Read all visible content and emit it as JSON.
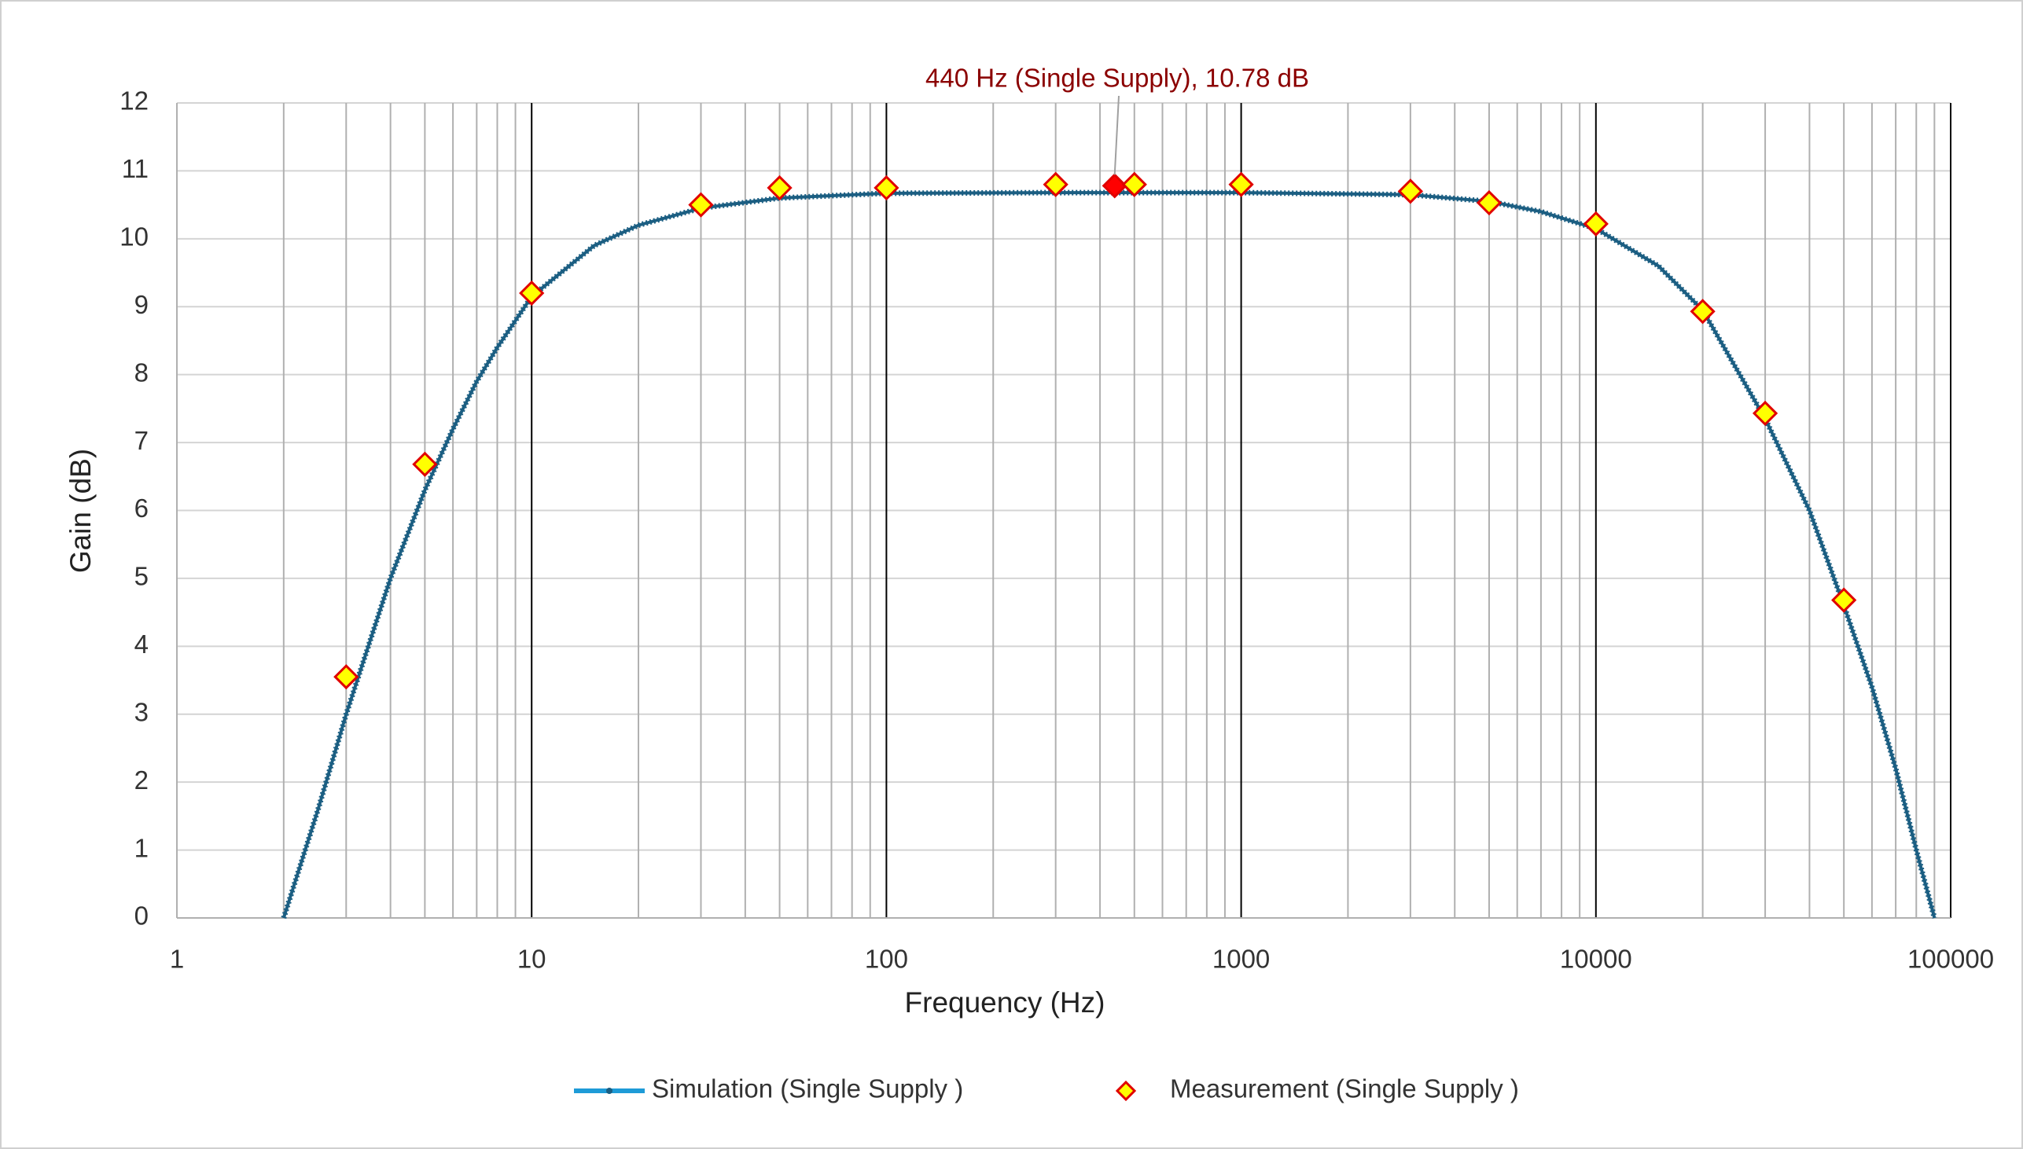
{
  "chart_data": {
    "type": "line",
    "annotation": {
      "text": "440 Hz (Single Supply), 10.78 dB",
      "series": 1,
      "point": 7,
      "color": "#8b0000",
      "marker_color": "#ff0000"
    },
    "x_label": "Frequency (Hz)",
    "y_label": "Gain (dB)",
    "x_log": true,
    "xlim": [
      1,
      100000
    ],
    "xticks": [
      1,
      10,
      100,
      1000,
      10000,
      100000
    ],
    "ylim": [
      0,
      12
    ],
    "yticks": [
      0,
      1,
      2,
      3,
      4,
      5,
      6,
      7,
      8,
      9,
      10,
      11,
      12
    ],
    "grid": true,
    "legend": "bottom",
    "series": [
      {
        "name": "Simulation (Single Supply )",
        "mode": "line",
        "color": "#1b5e82",
        "legend_color": "#1e9bd7",
        "x": [
          2,
          2.5,
          3,
          4,
          5,
          6,
          7,
          8,
          10,
          15,
          20,
          30,
          50,
          100,
          300,
          1000,
          3000,
          5000,
          7000,
          10000,
          15000,
          20000,
          30000,
          40000,
          50000,
          60000,
          70000,
          80000,
          90000
        ],
        "values": [
          0,
          1.6,
          3.0,
          5.0,
          6.3,
          7.2,
          7.9,
          8.4,
          9.15,
          9.9,
          10.2,
          10.45,
          10.6,
          10.67,
          10.68,
          10.68,
          10.65,
          10.55,
          10.4,
          10.15,
          9.6,
          8.95,
          7.35,
          6.0,
          4.6,
          3.4,
          2.2,
          1.0,
          0
        ]
      },
      {
        "name": "Measurement (Single Supply )",
        "mode": "markers",
        "color": "#ffff00",
        "edge_color": "#e00000",
        "x": [
          3,
          5,
          10,
          30,
          50,
          100,
          300,
          440,
          500,
          1000,
          3000,
          5000,
          10000,
          20000,
          30000,
          50000
        ],
        "values": [
          3.55,
          6.68,
          9.2,
          10.5,
          10.75,
          10.75,
          10.8,
          10.78,
          10.8,
          10.8,
          10.7,
          10.53,
          10.22,
          8.93,
          7.43,
          4.68
        ]
      }
    ]
  }
}
